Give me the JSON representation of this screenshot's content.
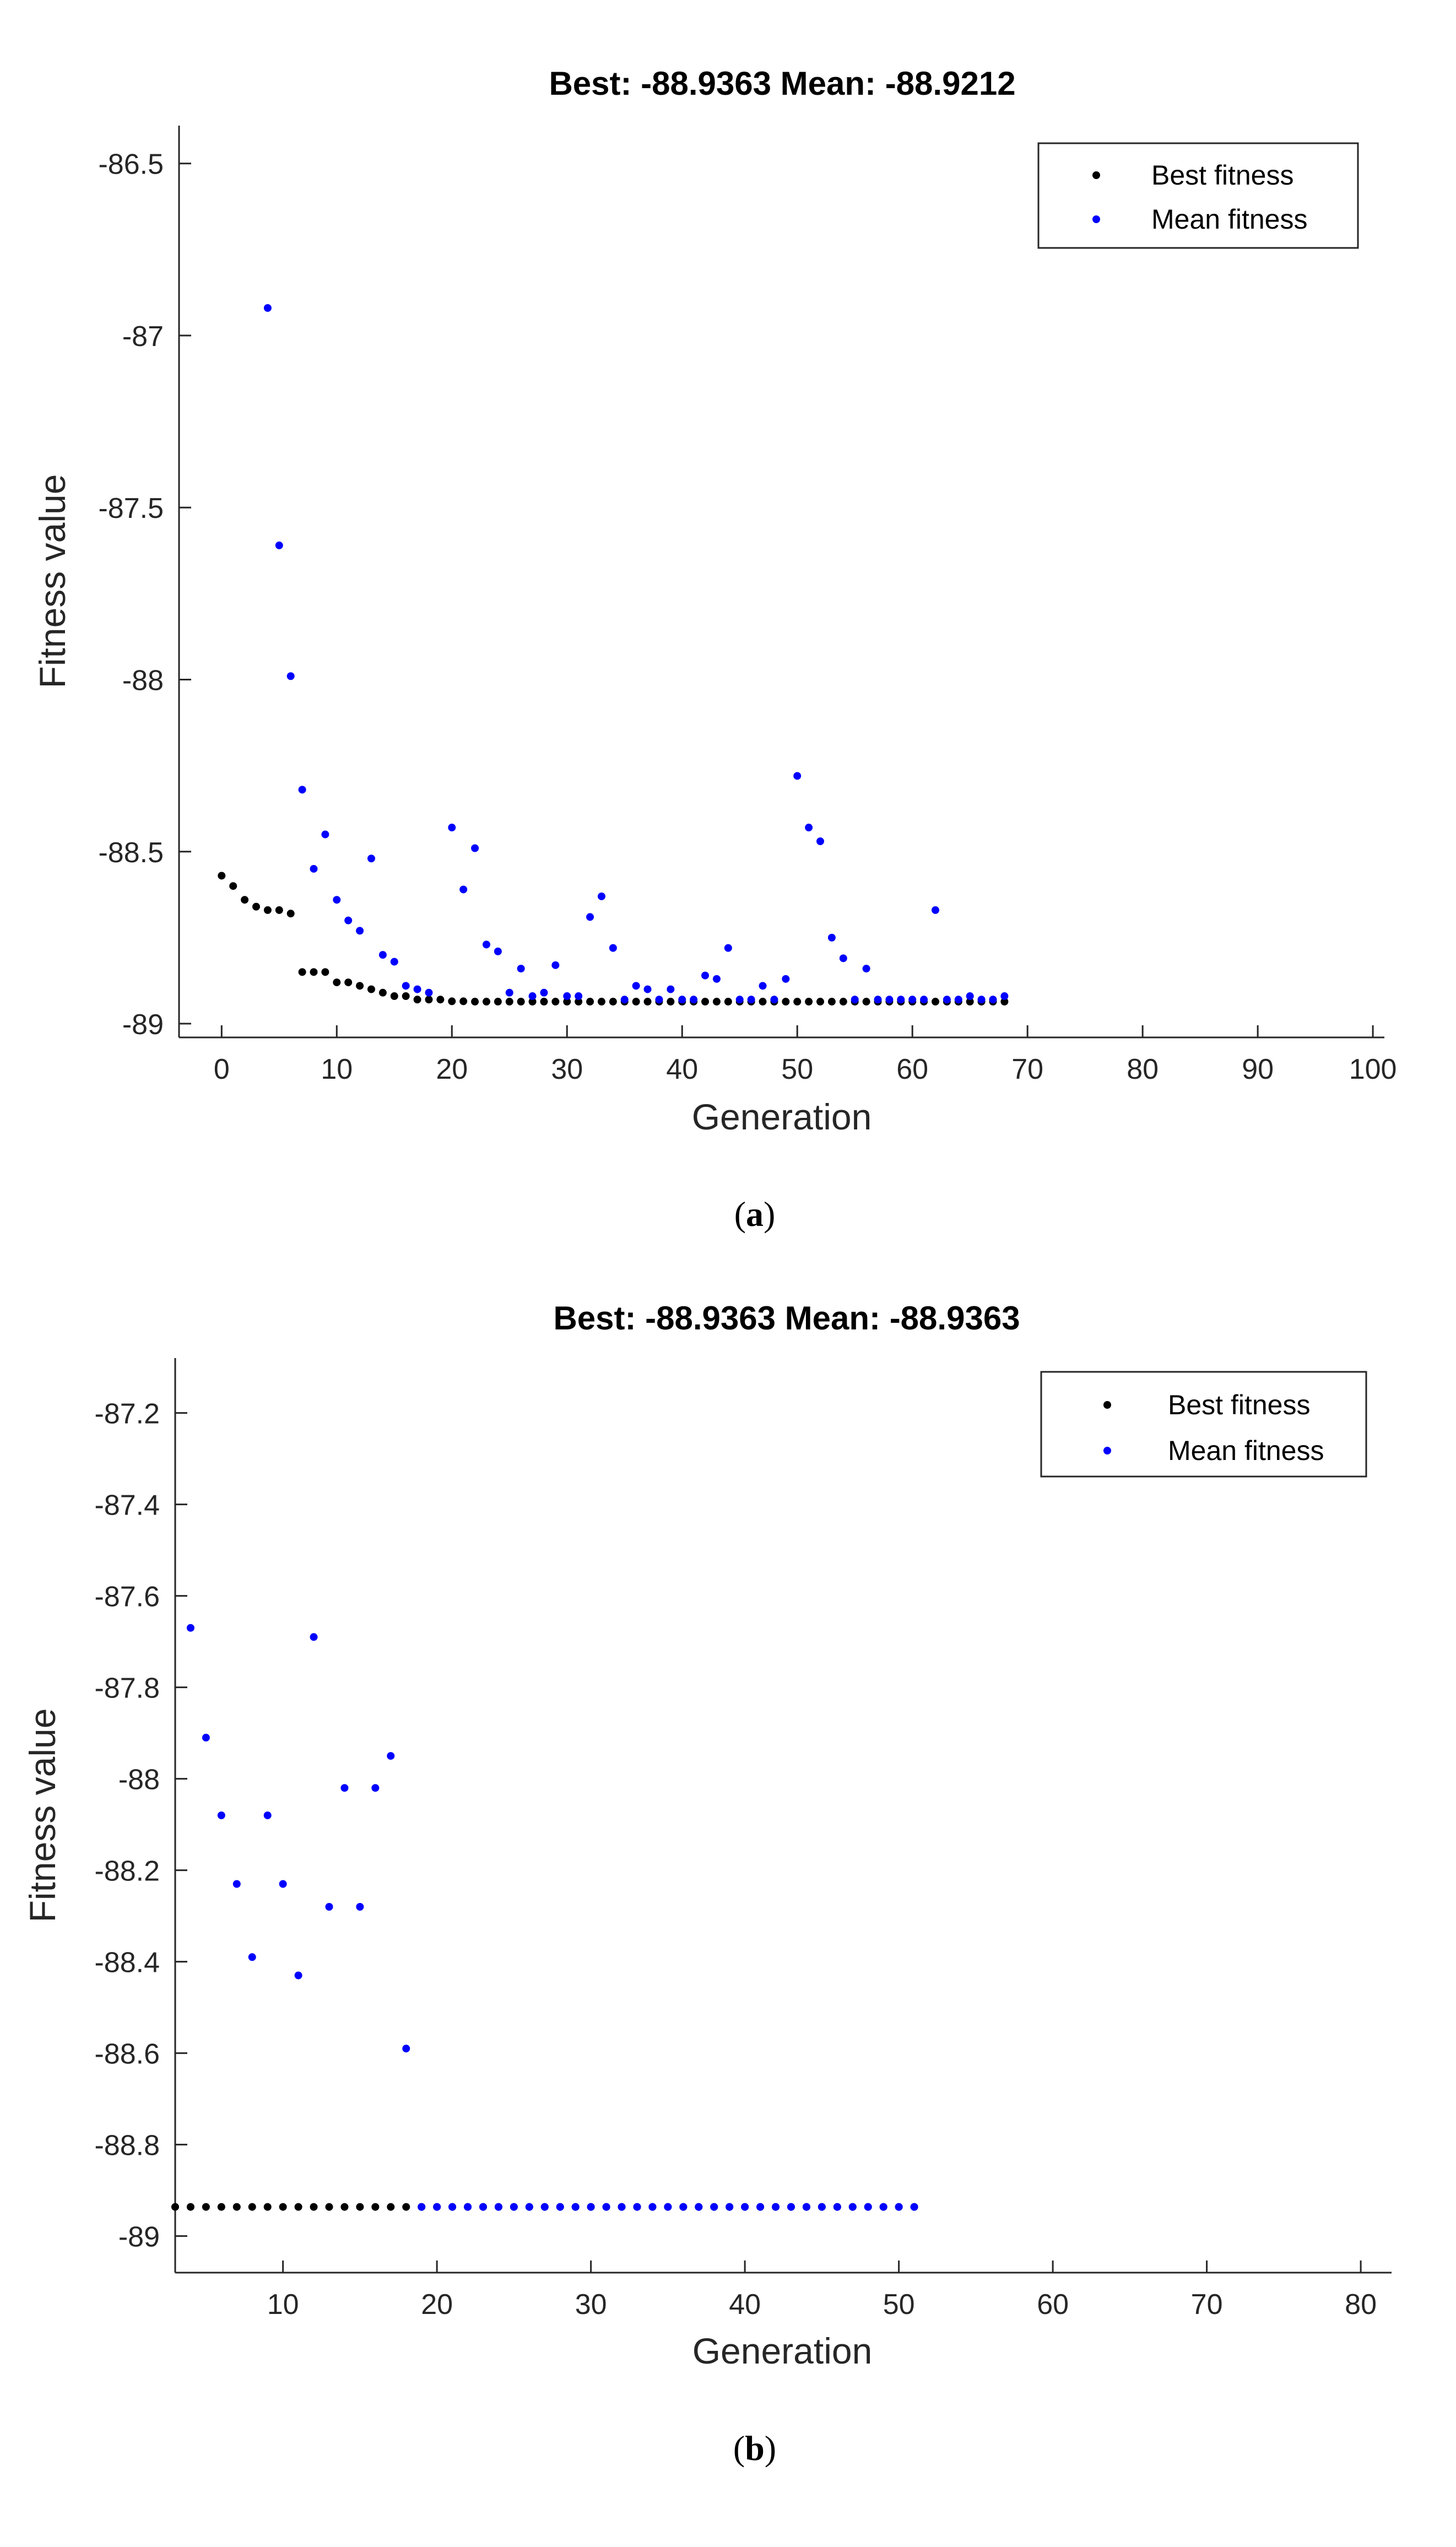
{
  "chart_data": [
    {
      "type": "scatter",
      "panel_label": "a",
      "title": "Best: -88.9363 Mean: -88.9212",
      "xlabel": "Generation",
      "ylabel": "Fitness value",
      "xlim": [
        -3.7,
        101
      ],
      "ylim": [
        -89.04,
        -86.39
      ],
      "xticks": [
        0,
        10,
        20,
        30,
        40,
        50,
        60,
        70,
        80,
        90,
        100
      ],
      "xticklabels": [
        "0",
        "10",
        "20",
        "30",
        "40",
        "50",
        "60",
        "70",
        "80",
        "90",
        "100"
      ],
      "yticks": [
        -86.5,
        -87,
        -87.5,
        -88,
        -88.5,
        -89
      ],
      "yticklabels": [
        "-86.5",
        "-87",
        "-87.5",
        "-88",
        "-88.5",
        "-89"
      ],
      "legend": {
        "location": "top-right",
        "entries": [
          "Best fitness",
          "Mean fitness"
        ]
      },
      "series": [
        {
          "name": "Best fitness",
          "color": "#000000",
          "x": [
            0,
            1,
            2,
            3,
            4,
            5,
            6,
            7,
            8,
            9,
            10,
            11,
            12,
            13,
            14,
            15,
            16,
            17,
            18,
            19,
            20,
            21,
            22,
            23,
            24,
            25,
            26,
            27,
            28,
            29,
            30,
            31,
            32,
            33,
            34,
            35,
            36,
            37,
            38,
            39,
            40,
            41,
            42,
            43,
            44,
            45,
            46,
            47,
            48,
            49,
            50,
            51,
            52,
            53,
            54,
            55,
            56,
            57,
            58,
            59,
            60,
            61,
            62,
            63,
            64,
            65,
            66,
            67,
            68
          ],
          "y": [
            -88.57,
            -88.6,
            -88.64,
            -88.66,
            -88.67,
            -88.67,
            -88.68,
            -88.85,
            -88.85,
            -88.85,
            -88.88,
            -88.88,
            -88.89,
            -88.9,
            -88.91,
            -88.92,
            -88.92,
            -88.93,
            -88.93,
            -88.93,
            -88.935,
            -88.935,
            -88.936,
            -88.936,
            -88.936,
            -88.936,
            -88.936,
            -88.936,
            -88.936,
            -88.936,
            -88.936,
            -88.936,
            -88.936,
            -88.936,
            -88.936,
            -88.936,
            -88.936,
            -88.936,
            -88.936,
            -88.936,
            -88.936,
            -88.936,
            -88.936,
            -88.936,
            -88.936,
            -88.936,
            -88.936,
            -88.936,
            -88.936,
            -88.936,
            -88.936,
            -88.936,
            -88.936,
            -88.936,
            -88.936,
            -88.936,
            -88.936,
            -88.936,
            -88.936,
            -88.936,
            -88.936,
            -88.936,
            -88.936,
            -88.936,
            -88.936,
            -88.936,
            -88.936,
            -88.936,
            -88.936
          ]
        },
        {
          "name": "Mean fitness",
          "color": "#0000ff",
          "x": [
            4,
            5,
            6,
            7,
            8,
            9,
            10,
            11,
            12,
            13,
            14,
            15,
            16,
            17,
            18,
            20,
            21,
            22,
            23,
            24,
            25,
            26,
            27,
            28,
            29,
            30,
            31,
            32,
            33,
            34,
            35,
            36,
            37,
            38,
            39,
            40,
            41,
            42,
            43,
            44,
            45,
            46,
            47,
            48,
            49,
            50,
            51,
            52,
            53,
            54,
            55,
            56,
            57,
            58,
            59,
            60,
            61,
            62,
            63,
            64,
            65,
            66,
            67,
            68
          ],
          "y": [
            -86.92,
            -87.61,
            -87.99,
            -88.32,
            -88.55,
            -88.45,
            -88.64,
            -88.7,
            -88.73,
            -88.52,
            -88.8,
            -88.82,
            -88.89,
            -88.9,
            -88.91,
            -88.43,
            -88.61,
            -88.49,
            -88.77,
            -88.79,
            -88.91,
            -88.84,
            -88.92,
            -88.91,
            -88.83,
            -88.92,
            -88.92,
            -88.69,
            -88.63,
            -88.78,
            -88.93,
            -88.89,
            -88.9,
            -88.93,
            -88.9,
            -88.93,
            -88.93,
            -88.86,
            -88.87,
            -88.78,
            -88.93,
            -88.93,
            -88.89,
            -88.93,
            -88.87,
            -88.28,
            -88.43,
            -88.47,
            -88.75,
            -88.81,
            -88.93,
            -88.84,
            -88.93,
            -88.93,
            -88.93,
            -88.93,
            -88.93,
            -88.67,
            -88.93,
            -88.93,
            -88.92,
            -88.93,
            -88.93,
            -88.92
          ]
        }
      ]
    },
    {
      "type": "scatter",
      "panel_label": "b",
      "title": "Best: -88.9363 Mean: -88.9363",
      "xlabel": "Generation",
      "ylabel": "Fitness value",
      "xlim": [
        3,
        82
      ],
      "ylim": [
        -89.08,
        -87.08
      ],
      "xticks": [
        10,
        20,
        30,
        40,
        50,
        60,
        70,
        80
      ],
      "xticklabels": [
        "10",
        "20",
        "30",
        "40",
        "50",
        "60",
        "70",
        "80"
      ],
      "yticks": [
        -87.2,
        -87.4,
        -87.6,
        -87.8,
        -88,
        -88.2,
        -88.4,
        -88.6,
        -88.8,
        -89
      ],
      "yticklabels": [
        "-87.2",
        "-87.4",
        "-87.6",
        "-87.8",
        "-88",
        "-88.2",
        "-88.4",
        "-88.6",
        "-88.8",
        "-89"
      ],
      "legend": {
        "location": "top-right",
        "entries": [
          "Best fitness",
          "Mean fitness"
        ]
      },
      "series": [
        {
          "name": "Best fitness",
          "color": "#000000",
          "x": [
            3,
            4,
            5,
            6,
            7,
            8,
            9,
            10,
            11,
            12,
            13,
            14,
            15,
            16,
            17,
            18,
            19,
            20,
            21,
            22,
            23,
            24,
            25,
            26,
            27,
            28,
            29,
            30,
            31,
            32,
            33,
            34,
            35,
            36,
            37,
            38,
            39,
            40,
            41,
            42,
            43,
            44,
            45,
            46,
            47,
            48,
            49,
            50,
            51
          ],
          "y": [
            -88.9363,
            -88.9363,
            -88.9363,
            -88.9363,
            -88.9363,
            -88.9363,
            -88.9363,
            -88.9363,
            -88.9363,
            -88.9363,
            -88.9363,
            -88.9363,
            -88.9363,
            -88.9363,
            -88.9363,
            -88.9363,
            -88.9363,
            -88.9363,
            -88.9363,
            -88.9363,
            -88.9363,
            -88.9363,
            -88.9363,
            -88.9363,
            -88.9363,
            -88.9363,
            -88.9363,
            -88.9363,
            -88.9363,
            -88.9363,
            -88.9363,
            -88.9363,
            -88.9363,
            -88.9363,
            -88.9363,
            -88.9363,
            -88.9363,
            -88.9363,
            -88.9363,
            -88.9363,
            -88.9363,
            -88.9363,
            -88.9363,
            -88.9363,
            -88.9363,
            -88.9363,
            -88.9363,
            -88.9363,
            -88.9363
          ]
        },
        {
          "name": "Mean fitness",
          "color": "#0000ff",
          "x": [
            4,
            5,
            6,
            7,
            8,
            9,
            10,
            11,
            12,
            13,
            14,
            15,
            16,
            17,
            18,
            19,
            20,
            21,
            22,
            23,
            24,
            25,
            26,
            27,
            28,
            29,
            30,
            31,
            32,
            33,
            34,
            35,
            36,
            37,
            38,
            39,
            40,
            41,
            42,
            43,
            44,
            45,
            46,
            47,
            48,
            49,
            50,
            51
          ],
          "y": [
            -87.67,
            -87.91,
            -88.08,
            -88.23,
            -88.39,
            -88.08,
            -88.23,
            -88.43,
            -87.69,
            -88.28,
            -88.02,
            -88.28,
            -88.02,
            -87.95,
            -88.59,
            -88.9363,
            -88.9363,
            -88.9363,
            -88.9363,
            -88.9363,
            -88.9363,
            -88.9363,
            -88.9363,
            -88.9363,
            -88.9363,
            -88.9363,
            -88.9363,
            -88.9363,
            -88.9363,
            -88.9363,
            -88.9363,
            -88.9363,
            -88.9363,
            -88.9363,
            -88.9363,
            -88.9363,
            -88.9363,
            -88.9363,
            -88.9363,
            -88.9363,
            -88.9363,
            -88.9363,
            -88.9363,
            -88.9363,
            -88.9363,
            -88.9363,
            -88.9363,
            -88.9363
          ]
        }
      ]
    }
  ]
}
